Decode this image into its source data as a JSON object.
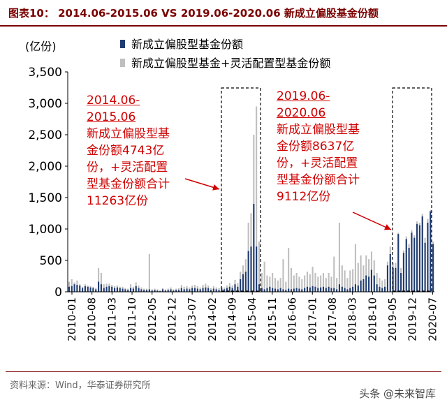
{
  "title": "图表10：  2014.06-2015.06 VS 2019.06-2020.06  新成立偏股基金份额",
  "source": "资料来源：Wind，华泰证券研究所",
  "watermark": "头条 @未来智库",
  "colors": {
    "series1": "#1f3b70",
    "series2": "#bfbfbf",
    "annotation": "#d00000",
    "title": "#7a0000"
  },
  "annotations": [
    {
      "title1": "2014.06-",
      "title2": "2015.06",
      "l1": "新成立偏股型基",
      "l2": "金份额4743亿",
      "l3": "份，+灵活配置",
      "l4": "型基金份额合计",
      "l5": "11263亿份"
    },
    {
      "title1": "2019.06-",
      "title2": "2020.06",
      "l1": "新成立偏股型基",
      "l2": "金份额8637亿",
      "l3": "份，+灵活配置",
      "l4": "型基金份额合计",
      "l5": "9112亿份"
    }
  ],
  "chart_data": {
    "type": "bar",
    "ylabel": "(亿份)",
    "ylim": [
      0,
      3500
    ],
    "yticks": [
      "0",
      "500",
      "1,000",
      "1,500",
      "2,000",
      "2,500",
      "3,000",
      "3,500"
    ],
    "xticks": [
      "2010-01",
      "2010-08",
      "2011-03",
      "2011-10",
      "2012-05",
      "2012-12",
      "2013-07",
      "2014-02",
      "2014-09",
      "2015-04",
      "2015-11",
      "2016-06",
      "2017-01",
      "2017-08",
      "2018-03",
      "2018-10",
      "2019-05",
      "2019-12",
      "2020-07"
    ],
    "series": [
      {
        "name": "新成立偏股型基金份额",
        "values": [
          80,
          90,
          120,
          110,
          100,
          60,
          90,
          80,
          70,
          60,
          40,
          160,
          120,
          60,
          80,
          90,
          80,
          60,
          70,
          60,
          50,
          40,
          30,
          60,
          50,
          90,
          60,
          40,
          30,
          30,
          40,
          20,
          30,
          20,
          10,
          40,
          20,
          30,
          40,
          20,
          30,
          30,
          60,
          40,
          50,
          40,
          60,
          60,
          50,
          40,
          60,
          70,
          60,
          30,
          50,
          40,
          30,
          50,
          40,
          60,
          80,
          60,
          120,
          80,
          200,
          280,
          320,
          650,
          720,
          1400,
          720,
          120,
          60,
          40,
          60,
          80,
          60,
          50,
          40,
          60,
          40,
          30,
          50,
          40,
          50,
          60,
          50,
          40,
          60,
          80,
          70,
          90,
          80,
          60,
          70,
          80,
          60,
          80,
          60,
          60,
          40,
          120,
          80,
          60,
          40,
          60,
          80,
          120,
          100,
          180,
          200,
          260,
          240,
          350,
          260,
          120,
          80,
          60,
          80,
          420,
          600,
          380,
          380,
          920,
          300,
          620,
          840,
          700,
          940,
          860,
          1080,
          1060,
          1200,
          780,
          1100,
          1280,
          760
        ]
      },
      {
        "name": "新成立偏股型基金+灵活配置型基金份额",
        "values": [
          160,
          200,
          150,
          180,
          120,
          80,
          120,
          100,
          90,
          80,
          60,
          380,
          300,
          120,
          130,
          130,
          110,
          90,
          100,
          80,
          80,
          60,
          50,
          120,
          80,
          150,
          100,
          70,
          50,
          50,
          600,
          40,
          50,
          40,
          30,
          60,
          40,
          50,
          70,
          40,
          50,
          60,
          110,
          80,
          90,
          70,
          100,
          110,
          90,
          70,
          110,
          130,
          100,
          60,
          90,
          70,
          60,
          80,
          70,
          100,
          140,
          100,
          190,
          140,
          320,
          420,
          520,
          1100,
          1250,
          2500,
          2950,
          800,
          300,
          480,
          260,
          240,
          300,
          220,
          180,
          220,
          520,
          160,
          700,
          380,
          260,
          300,
          240,
          200,
          260,
          320,
          280,
          400,
          300,
          240,
          260,
          300,
          220,
          300,
          240,
          560,
          220,
          1100,
          420,
          340,
          220,
          340,
          360,
          760,
          460,
          580,
          420,
          580,
          520,
          640,
          500,
          300,
          220,
          180,
          200,
          480,
          720,
          460,
          460,
          940,
          380,
          660,
          880,
          760,
          980,
          900,
          1120,
          1100,
          1240,
          860,
          1160,
          1300,
          800
        ]
      }
    ],
    "legend_position": "top-center",
    "grid": false
  }
}
